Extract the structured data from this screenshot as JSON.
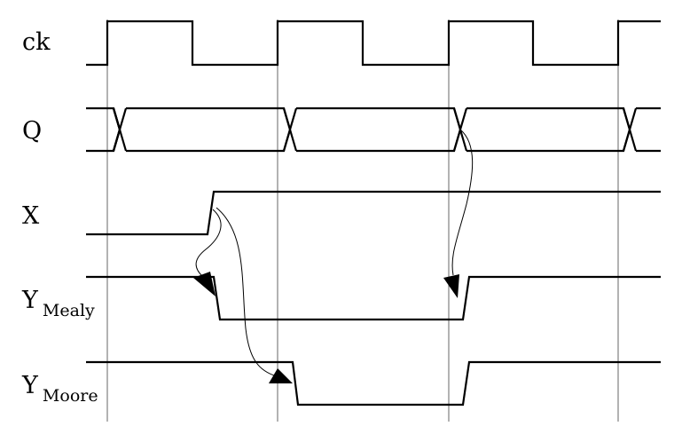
{
  "signals": {
    "ck": {
      "name": "ck"
    },
    "q": {
      "name": "Q"
    },
    "x": {
      "name": "X"
    },
    "y_mealy": {
      "name": "Y",
      "subscript": "Mealy"
    },
    "y_moore": {
      "name": "Y",
      "subscript": "Moore"
    }
  }
}
